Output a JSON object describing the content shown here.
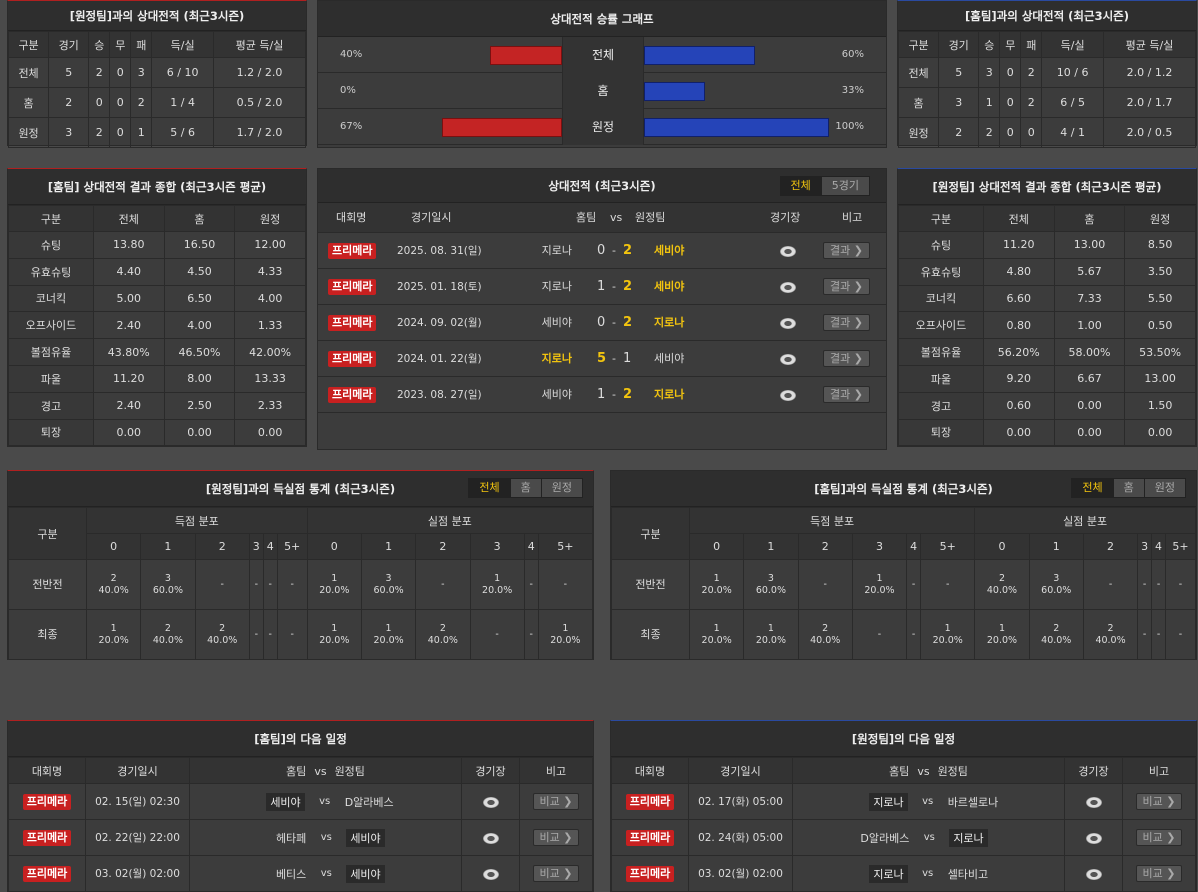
{
  "away_h2h": {
    "title": "[원정팀]과의 상대전적 (최근3시즌)",
    "headers": [
      "구분",
      "경기",
      "승",
      "무",
      "패",
      "득/실",
      "평균 득/실"
    ],
    "rows": [
      [
        "전체",
        "5",
        "2",
        "0",
        "3",
        "6 / 10",
        "1.2 / 2.0"
      ],
      [
        "홈",
        "2",
        "0",
        "0",
        "2",
        "1 / 4",
        "0.5 / 2.0"
      ],
      [
        "원정",
        "3",
        "2",
        "0",
        "1",
        "5 / 6",
        "1.7 / 2.0"
      ]
    ]
  },
  "win_graph": {
    "title": "상대전적 승률 그래프",
    "rows": [
      {
        "label": "전체",
        "left_pct": "40%",
        "right_pct": "60%",
        "left": 40,
        "right": 60
      },
      {
        "label": "홈",
        "left_pct": "0%",
        "right_pct": "33%",
        "left": 0,
        "right": 33
      },
      {
        "label": "원정",
        "left_pct": "67%",
        "right_pct": "100%",
        "left": 67,
        "right": 100
      }
    ]
  },
  "home_h2h": {
    "title": "[홈팀]과의 상대전적 (최근3시즌)",
    "headers": [
      "구분",
      "경기",
      "승",
      "무",
      "패",
      "득/실",
      "평균 득/실"
    ],
    "rows": [
      [
        "전체",
        "5",
        "3",
        "0",
        "2",
        "10 / 6",
        "2.0 / 1.2"
      ],
      [
        "홈",
        "3",
        "1",
        "0",
        "2",
        "6 / 5",
        "2.0 / 1.7"
      ],
      [
        "원정",
        "2",
        "2",
        "0",
        "0",
        "4 / 1",
        "2.0 / 0.5"
      ]
    ]
  },
  "home_summary": {
    "title": "[홈팀] 상대전적 결과 종합 (최근3시즌 평균)",
    "headers": [
      "구분",
      "전체",
      "홈",
      "원정"
    ],
    "rows": [
      [
        "슈팅",
        "13.80",
        "16.50",
        "12.00"
      ],
      [
        "유효슈팅",
        "4.40",
        "4.50",
        "4.33"
      ],
      [
        "코너킥",
        "5.00",
        "6.50",
        "4.00"
      ],
      [
        "오프사이드",
        "2.40",
        "4.00",
        "1.33"
      ],
      [
        "볼점유율",
        "43.80%",
        "46.50%",
        "42.00%"
      ],
      [
        "파울",
        "11.20",
        "8.00",
        "13.33"
      ],
      [
        "경고",
        "2.40",
        "2.50",
        "2.33"
      ],
      [
        "퇴장",
        "0.00",
        "0.00",
        "0.00"
      ]
    ]
  },
  "h2h_matches": {
    "title": "상대전적 (최근3시즌)",
    "tabs": [
      "전체",
      "5경기"
    ],
    "headers": {
      "league": "대회명",
      "date": "경기일시",
      "home": "홈팀",
      "vs": "vs",
      "away": "원정팀",
      "stadium": "경기장",
      "note": "비고"
    },
    "rows": [
      {
        "league": "프리메라",
        "date": "2025. 08. 31(일)",
        "home": "지로나",
        "hs": "0",
        "as": "2",
        "away": "세비야",
        "winner": "away",
        "btn": "결과"
      },
      {
        "league": "프리메라",
        "date": "2025. 01. 18(토)",
        "home": "지로나",
        "hs": "1",
        "as": "2",
        "away": "세비야",
        "winner": "away",
        "btn": "결과"
      },
      {
        "league": "프리메라",
        "date": "2024. 09. 02(월)",
        "home": "세비야",
        "hs": "0",
        "as": "2",
        "away": "지로나",
        "winner": "away",
        "btn": "결과"
      },
      {
        "league": "프리메라",
        "date": "2024. 01. 22(월)",
        "home": "지로나",
        "hs": "5",
        "as": "1",
        "away": "세비야",
        "winner": "home",
        "btn": "결과"
      },
      {
        "league": "프리메라",
        "date": "2023. 08. 27(일)",
        "home": "세비야",
        "hs": "1",
        "as": "2",
        "away": "지로나",
        "winner": "away",
        "btn": "결과"
      }
    ]
  },
  "away_summary": {
    "title": "[원정팀] 상대전적 결과 종합 (최근3시즌 평균)",
    "headers": [
      "구분",
      "전체",
      "홈",
      "원정"
    ],
    "rows": [
      [
        "슈팅",
        "11.20",
        "13.00",
        "8.50"
      ],
      [
        "유효슈팅",
        "4.80",
        "5.67",
        "3.50"
      ],
      [
        "코너킥",
        "6.60",
        "7.33",
        "5.50"
      ],
      [
        "오프사이드",
        "0.80",
        "1.00",
        "0.50"
      ],
      [
        "볼점유율",
        "56.20%",
        "58.00%",
        "53.50%"
      ],
      [
        "파울",
        "9.20",
        "6.67",
        "13.00"
      ],
      [
        "경고",
        "0.60",
        "0.00",
        "1.50"
      ],
      [
        "퇴장",
        "0.00",
        "0.00",
        "0.00"
      ]
    ]
  },
  "away_goals": {
    "title": "[원정팀]과의 득실점 통계 (최근3시즌)",
    "tabs": [
      "전체",
      "홈",
      "원정"
    ],
    "group_label": "구분",
    "scored_label": "득점 분포",
    "conceded_label": "실점 분포",
    "buckets": [
      "0",
      "1",
      "2",
      "3",
      "4",
      "5+"
    ],
    "rows": [
      {
        "label": "전반전",
        "scored": [
          [
            "2",
            "40.0%"
          ],
          [
            "3",
            "60.0%"
          ],
          [
            "-",
            ""
          ],
          [
            "-",
            ""
          ],
          [
            "-",
            ""
          ],
          [
            "-",
            ""
          ]
        ],
        "conceded": [
          [
            "1",
            "20.0%"
          ],
          [
            "3",
            "60.0%"
          ],
          [
            "-",
            ""
          ],
          [
            "1",
            "20.0%"
          ],
          [
            "-",
            ""
          ],
          [
            "-",
            ""
          ]
        ]
      },
      {
        "label": "최종",
        "scored": [
          [
            "1",
            "20.0%"
          ],
          [
            "2",
            "40.0%"
          ],
          [
            "2",
            "40.0%"
          ],
          [
            "-",
            ""
          ],
          [
            "-",
            ""
          ],
          [
            "-",
            ""
          ]
        ],
        "conceded": [
          [
            "1",
            "20.0%"
          ],
          [
            "1",
            "20.0%"
          ],
          [
            "2",
            "40.0%"
          ],
          [
            "-",
            ""
          ],
          [
            "-",
            ""
          ],
          [
            "1",
            "20.0%"
          ]
        ]
      }
    ]
  },
  "home_goals": {
    "title": "[홈팀]과의 득실점 통계 (최근3시즌)",
    "tabs": [
      "전체",
      "홈",
      "원정"
    ],
    "group_label": "구분",
    "scored_label": "득점 분포",
    "conceded_label": "실점 분포",
    "buckets": [
      "0",
      "1",
      "2",
      "3",
      "4",
      "5+"
    ],
    "rows": [
      {
        "label": "전반전",
        "scored": [
          [
            "1",
            "20.0%"
          ],
          [
            "3",
            "60.0%"
          ],
          [
            "-",
            ""
          ],
          [
            "1",
            "20.0%"
          ],
          [
            "-",
            ""
          ],
          [
            "-",
            ""
          ]
        ],
        "conceded": [
          [
            "2",
            "40.0%"
          ],
          [
            "3",
            "60.0%"
          ],
          [
            "-",
            ""
          ],
          [
            "-",
            ""
          ],
          [
            "-",
            ""
          ],
          [
            "-",
            ""
          ]
        ]
      },
      {
        "label": "최종",
        "scored": [
          [
            "1",
            "20.0%"
          ],
          [
            "1",
            "20.0%"
          ],
          [
            "2",
            "40.0%"
          ],
          [
            "-",
            ""
          ],
          [
            "-",
            ""
          ],
          [
            "1",
            "20.0%"
          ]
        ],
        "conceded": [
          [
            "1",
            "20.0%"
          ],
          [
            "2",
            "40.0%"
          ],
          [
            "2",
            "40.0%"
          ],
          [
            "-",
            ""
          ],
          [
            "-",
            ""
          ],
          [
            "-",
            ""
          ]
        ]
      }
    ]
  },
  "home_next": {
    "title": "[홈팀]의 다음 일정",
    "headers": {
      "league": "대회명",
      "date": "경기일시",
      "home": "홈팀",
      "vs": "vs",
      "away": "원정팀",
      "stadium": "경기장",
      "note": "비고"
    },
    "rows": [
      {
        "league": "프리메라",
        "date": "02. 15(일) 02:30",
        "home": "세비야",
        "away": "D알라베스",
        "boxed": "home",
        "btn": "비교"
      },
      {
        "league": "프리메라",
        "date": "02. 22(일) 22:00",
        "home": "헤타페",
        "away": "세비야",
        "boxed": "away",
        "btn": "비교"
      },
      {
        "league": "프리메라",
        "date": "03. 02(월) 02:00",
        "home": "베티스",
        "away": "세비야",
        "boxed": "away",
        "btn": "비교"
      }
    ]
  },
  "away_next": {
    "title": "[원정팀]의 다음 일정",
    "headers": {
      "league": "대회명",
      "date": "경기일시",
      "home": "홈팀",
      "vs": "vs",
      "away": "원정팀",
      "stadium": "경기장",
      "note": "비고"
    },
    "rows": [
      {
        "league": "프리메라",
        "date": "02. 17(화) 05:00",
        "home": "지로나",
        "away": "바르셀로나",
        "boxed": "home",
        "btn": "비교"
      },
      {
        "league": "프리메라",
        "date": "02. 24(화) 05:00",
        "home": "D알라베스",
        "away": "지로나",
        "boxed": "away",
        "btn": "비교"
      },
      {
        "league": "프리메라",
        "date": "03. 02(월) 02:00",
        "home": "지로나",
        "away": "셀타비고",
        "boxed": "home",
        "btn": "비교"
      }
    ]
  },
  "colors": {
    "win": "#f2c40f",
    "badge": "#c82020",
    "bar_red": "#c42424",
    "bar_blue": "#2544b8"
  }
}
